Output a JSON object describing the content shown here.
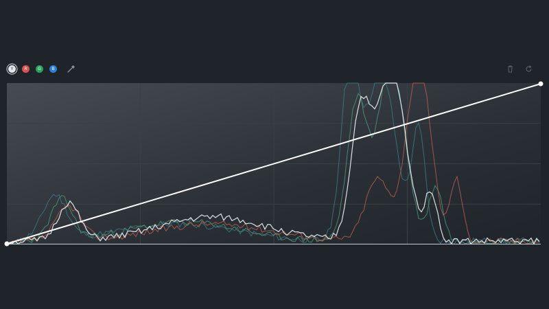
{
  "toolbar": {
    "channels": [
      {
        "label": "Y",
        "color": "#e4e6e9",
        "text_color": "#2a2f36",
        "active": true
      },
      {
        "label": "R",
        "color": "#d9534f",
        "text_color": "#ffffff",
        "active": false
      },
      {
        "label": "G",
        "color": "#27a35a",
        "text_color": "#ffffff",
        "active": false
      },
      {
        "label": "B",
        "color": "#2f80d9",
        "text_color": "#ffffff",
        "active": false
      }
    ],
    "eyedropper_icon": "eyedropper-icon",
    "delete_icon": "trash-icon",
    "reset_icon": "reset-icon"
  },
  "curve": {
    "points": [
      [
        0,
        0
      ],
      [
        1,
        1
      ]
    ],
    "line_color": "#ffffff"
  },
  "histogram": {
    "colors": {
      "luma": "#e8ecef",
      "red": "#c0614f",
      "green": "#4f9d78",
      "blue": "#3e7e88"
    }
  },
  "theme": {
    "background": "#1f242b",
    "grid": "#3a4047"
  }
}
